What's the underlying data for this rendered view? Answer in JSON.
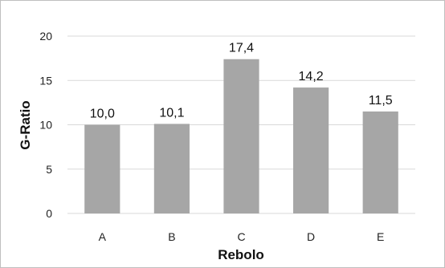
{
  "chart_data": {
    "type": "bar",
    "categories": [
      "A",
      "B",
      "C",
      "D",
      "E"
    ],
    "values": [
      10.0,
      10.1,
      17.4,
      14.2,
      11.5
    ],
    "data_labels": [
      "10,0",
      "10,1",
      "17,4",
      "14,2",
      "11,5"
    ],
    "title": "",
    "xlabel": "Rebolo",
    "ylabel": "G-Ratio",
    "ylim": [
      0,
      20
    ],
    "yticks": [
      0,
      5,
      10,
      15,
      20
    ],
    "grid": true,
    "bar_color": "#a6a6a6",
    "grid_color": "#d9d9d9"
  }
}
